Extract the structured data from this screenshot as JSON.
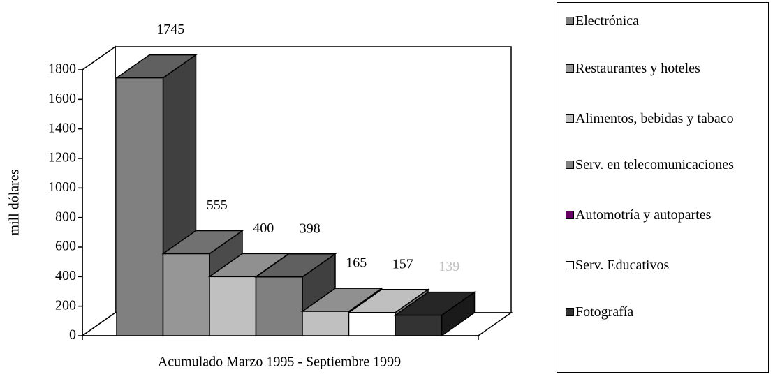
{
  "chart_data": {
    "type": "bar3d",
    "ylabel": "mill dólares",
    "xlabel": "Acumulado Marzo 1995 - Septiembre 1999",
    "ylim": [
      0,
      1800
    ],
    "yticks": [
      0,
      200,
      400,
      600,
      800,
      1000,
      1200,
      1400,
      1600,
      1800
    ],
    "legend": "right",
    "series": [
      {
        "name": "Electrónica",
        "color": "#808080",
        "bar_color": "#808080",
        "values": [
          1745
        ]
      },
      {
        "name": "Restaurantes y hoteles",
        "color": "#969696",
        "bar_color": "#969696",
        "values": [
          555
        ]
      },
      {
        "name": "Alimentos, bebidas y tabaco",
        "color": "#c0c0c0",
        "bar_color": "#c0c0c0",
        "values": [
          400
        ]
      },
      {
        "name": "Serv. en telecomunicaciones",
        "color": "#808080",
        "bar_color": "#808080",
        "values": [
          398
        ]
      },
      {
        "name": "Automotría y autopartes",
        "color": "#660066",
        "bar_color": "#c0c0c0",
        "values": [
          165
        ]
      },
      {
        "name": "Serv. Educativos",
        "color": "#ffffff",
        "bar_color": "#ffffff",
        "values": [
          157
        ]
      },
      {
        "name": "Fotografía",
        "color": "#333333",
        "bar_color": "#333333",
        "values": [
          139
        ]
      }
    ]
  }
}
